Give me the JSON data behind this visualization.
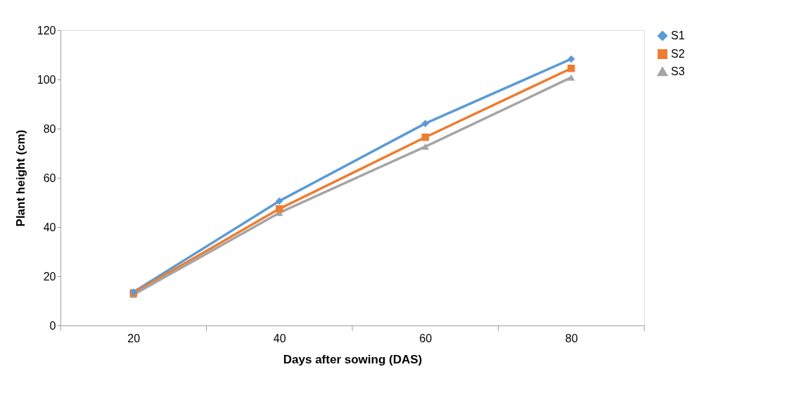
{
  "chart_data": {
    "type": "line",
    "xlabel": "Days after sowing (DAS)",
    "ylabel": "Plant height (cm)",
    "categories": [
      "20",
      "40",
      "60",
      "80"
    ],
    "series": [
      {
        "name": "S1",
        "color": "#5b9bd5",
        "marker": "diamond",
        "values": [
          13.6,
          50.6,
          82.1,
          108.3
        ]
      },
      {
        "name": "S2",
        "color": "#ed7d31",
        "marker": "square",
        "values": [
          13.2,
          47.4,
          76.5,
          104.5
        ]
      },
      {
        "name": "S3",
        "color": "#a5a5a5",
        "marker": "triangle",
        "values": [
          12.5,
          45.8,
          72.7,
          100.8
        ]
      }
    ],
    "ylim": [
      0,
      120
    ],
    "yticks": [
      0,
      20,
      40,
      60,
      80,
      100,
      120
    ],
    "grid": false,
    "legend": "right"
  }
}
